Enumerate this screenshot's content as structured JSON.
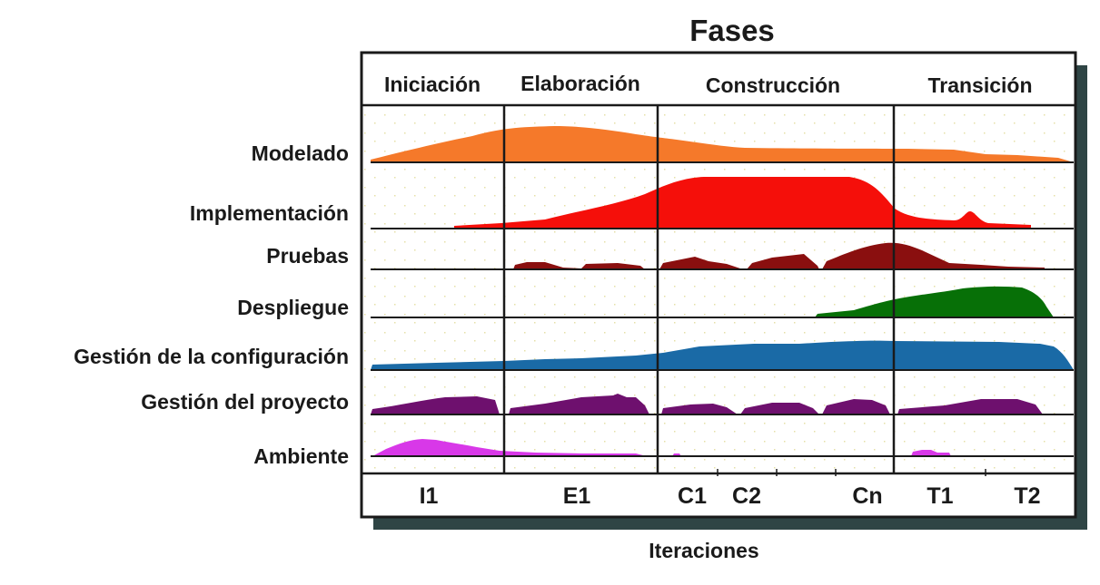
{
  "title": "Fases",
  "xlabel": "Iteraciones",
  "phases": [
    "Iniciación",
    "Elaboración",
    "Construcción",
    "Transición"
  ],
  "disciplines": [
    {
      "label": "Modelado",
      "color": "#f5792a"
    },
    {
      "label": "Implementación",
      "color": "#f50f0a"
    },
    {
      "label": "Pruebas",
      "color": "#8a0f0f"
    },
    {
      "label": "Despliegue",
      "color": "#077007"
    },
    {
      "label": "Gestión de la configuración",
      "color": "#1a6aa6"
    },
    {
      "label": "Gestión del proyecto",
      "color": "#6e106e"
    },
    {
      "label": "Ambiente",
      "color": "#d838e8"
    }
  ],
  "iterations": [
    "I1",
    "E1",
    "C1",
    "C2",
    "Cn",
    "T1",
    "T2"
  ],
  "colors": {
    "frame": "#1a1a1a",
    "shadow": "#2f4545",
    "dots": "#e6e0a8"
  }
}
